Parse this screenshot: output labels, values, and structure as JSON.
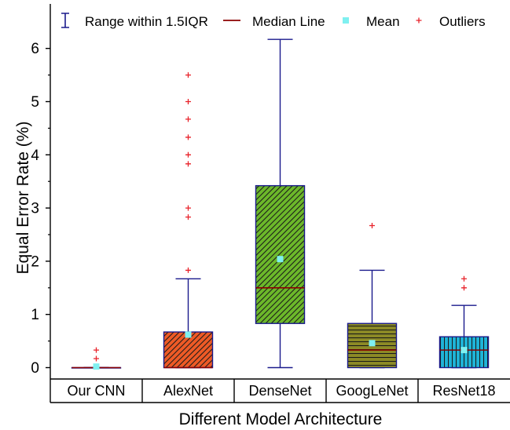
{
  "chart_data": {
    "type": "box",
    "xlabel": "Different Model Architecture",
    "ylabel": "Equal Error Rate (%)",
    "ylim": [
      -0.3,
      6.6
    ],
    "yticks": [
      0,
      1,
      2,
      3,
      4,
      5,
      6
    ],
    "categories": [
      "Our CNN",
      "AlexNet",
      "DenseNet",
      "GoogLeNet",
      "ResNet18"
    ],
    "boxes": [
      {
        "category": "Our CNN",
        "whisker_low": 0,
        "q1": 0,
        "median": 0,
        "q3": 0,
        "whisker_high": 0,
        "mean": 0.02,
        "outliers": [
          0.17,
          0.33
        ],
        "fill": "#333333",
        "pattern": "none"
      },
      {
        "category": "AlexNet",
        "whisker_low": 0,
        "q1": 0,
        "median": 0,
        "q3": 0.67,
        "whisker_high": 1.67,
        "mean": 0.62,
        "outliers": [
          1.83,
          2.83,
          3.0,
          3.83,
          4.0,
          4.33,
          4.67,
          5.0,
          5.5
        ],
        "fill": "#ee5a26",
        "pattern": "diagonal"
      },
      {
        "category": "DenseNet",
        "whisker_low": 0,
        "q1": 0.83,
        "median": 1.5,
        "q3": 3.42,
        "whisker_high": 6.17,
        "mean": 2.04,
        "outliers": [],
        "fill": "#6cb82a",
        "pattern": "diagonal"
      },
      {
        "category": "GoogLeNet",
        "whisker_low": 0,
        "q1": 0,
        "median": 0.33,
        "q3": 0.83,
        "whisker_high": 1.83,
        "mean": 0.46,
        "outliers": [
          2.67
        ],
        "fill": "#8c8a26",
        "pattern": "horizontal"
      },
      {
        "category": "ResNet18",
        "whisker_low": 0,
        "q1": 0,
        "median": 0.33,
        "q3": 0.58,
        "whisker_high": 1.17,
        "mean": 0.33,
        "outliers": [
          1.5,
          1.67
        ],
        "fill": "#1fb4d8",
        "pattern": "vertical"
      }
    ],
    "legend": {
      "placement": "top",
      "items": [
        {
          "label": "Range within 1.5IQR",
          "marker": "range-icon"
        },
        {
          "label": "Median Line",
          "marker": "median-line-icon"
        },
        {
          "label": "Mean",
          "marker": "mean-square-icon"
        },
        {
          "label": "Outliers",
          "marker": "outlier-plus-icon"
        }
      ]
    },
    "colors": {
      "whisker": "#1a1a8c",
      "median": "#8b0000",
      "mean": "#7ff0f0",
      "outlier": "#e8222a",
      "axis": "#000000"
    },
    "grid": false
  }
}
